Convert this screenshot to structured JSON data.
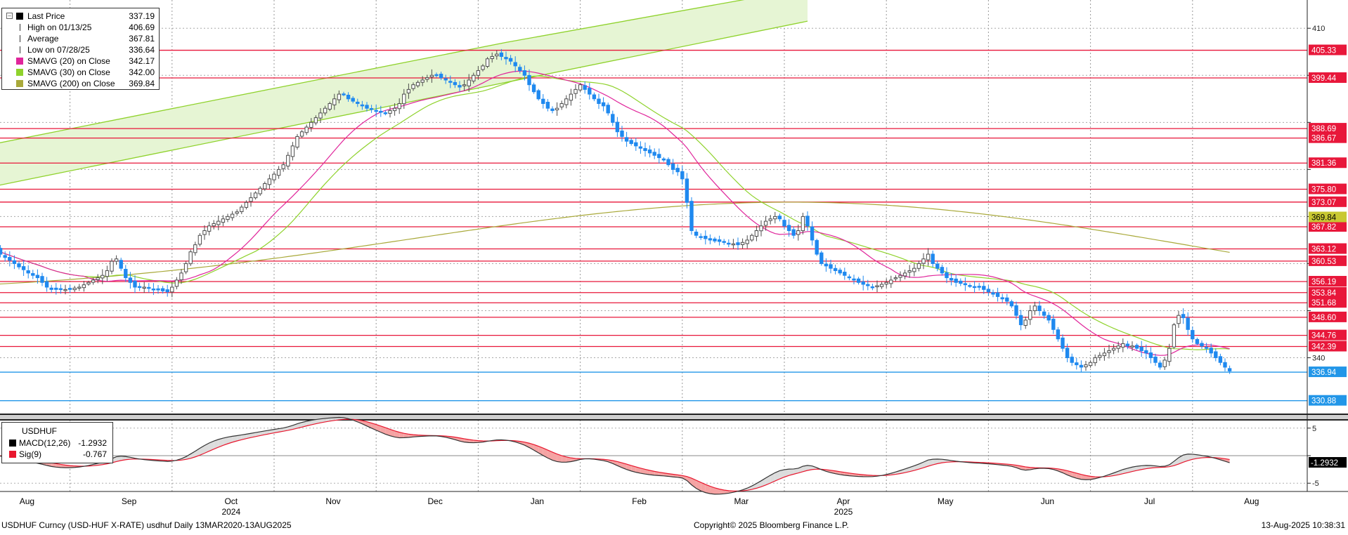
{
  "chart_data": [
    {
      "type": "candlestick",
      "symbol": "USDHUF",
      "ylim": [
        328,
        416
      ],
      "yticks": [
        340,
        350,
        360,
        370,
        380,
        390,
        400,
        410
      ],
      "ytick_labels": {
        "340": "340",
        "410": "410"
      },
      "months": [
        {
          "label": "Aug",
          "bar": 4
        },
        {
          "label": "Sep",
          "bar": 26
        },
        {
          "label": "Oct",
          "bar": 48
        },
        {
          "label": "Nov",
          "bar": 70
        },
        {
          "label": "Dec",
          "bar": 92
        },
        {
          "label": "Jan",
          "bar": 114
        },
        {
          "label": "Feb",
          "bar": 136
        },
        {
          "label": "Mar",
          "bar": 158
        },
        {
          "label": "Apr",
          "bar": 180
        },
        {
          "label": "May",
          "bar": 202
        },
        {
          "label": "Jun",
          "bar": 224
        },
        {
          "label": "Jul",
          "bar": 246
        },
        {
          "label": "Aug",
          "bar": 268
        }
      ],
      "month_dividers": [
        16,
        38,
        60,
        82,
        104,
        126,
        148,
        170,
        192,
        214,
        236,
        258
      ],
      "years": [
        {
          "label": "2024",
          "bar": 48
        },
        {
          "label": "2025",
          "bar": 180
        }
      ],
      "closes": [
        363.0,
        362.0,
        361.3,
        360.7,
        360.0,
        359.3,
        358.7,
        358.0,
        357.5,
        357.0,
        356.0,
        355.0,
        354.5,
        354.5,
        354.5,
        354.5,
        354.5,
        354.8,
        355.0,
        355.5,
        356.0,
        356.5,
        357.0,
        357.5,
        358.5,
        360.5,
        361.0,
        359.0,
        357.0,
        356.0,
        355.0,
        355.0,
        355.0,
        354.8,
        354.6,
        354.4,
        354.2,
        354.0,
        355.0,
        356.5,
        358.0,
        360.0,
        362.5,
        364.0,
        366.0,
        367.0,
        368.0,
        368.5,
        369.0,
        369.5,
        370.0,
        370.5,
        371.0,
        372.0,
        373.0,
        374.0,
        375.0,
        376.0,
        377.0,
        378.0,
        379.0,
        380.0,
        381.0,
        383.0,
        385.0,
        387.0,
        388.0,
        389.0,
        390.0,
        391.0,
        392.0,
        393.0,
        394.0,
        395.0,
        396.0,
        396.0,
        395.0,
        394.5,
        394.0,
        393.5,
        393.0,
        392.8,
        392.5,
        392.3,
        392.0,
        392.5,
        393.0,
        394.0,
        396.0,
        397.0,
        398.0,
        398.5,
        399.0,
        399.5,
        400.0,
        400.0,
        399.5,
        399.0,
        398.5,
        398.0,
        397.5,
        398.0,
        399.0,
        400.0,
        401.0,
        402.0,
        403.5,
        404.0,
        404.5,
        404.0,
        403.5,
        403.0,
        402.0,
        401.0,
        400.0,
        398.0,
        396.5,
        395.0,
        394.0,
        393.0,
        392.5,
        393.0,
        394.0,
        395.0,
        396.0,
        397.0,
        398.0,
        397.0,
        396.0,
        395.0,
        394.0,
        393.5,
        392.0,
        390.0,
        388.0,
        387.0,
        386.0,
        385.5,
        385.0,
        384.5,
        384.0,
        383.5,
        383.0,
        382.5,
        382.0,
        381.0,
        380.0,
        379.5,
        378.0,
        373.0,
        367.0,
        366.0,
        365.7,
        365.3,
        365.0,
        364.8,
        364.7,
        364.5,
        364.3,
        364.2,
        364.0,
        364.5,
        365.0,
        366.0,
        367.0,
        368.0,
        369.0,
        369.5,
        370.0,
        369.5,
        368.0,
        367.0,
        366.0,
        367.0,
        370.0,
        368.0,
        365.0,
        362.0,
        360.0,
        359.5,
        359.0,
        358.5,
        358.0,
        357.5,
        357.0,
        356.5,
        356.0,
        355.6,
        355.3,
        355.0,
        355.3,
        355.6,
        356.0,
        356.5,
        357.0,
        357.5,
        358.0,
        358.5,
        359.0,
        360.0,
        361.0,
        362.0,
        360.0,
        359.0,
        358.0,
        357.0,
        356.5,
        356.0,
        355.8,
        355.5,
        355.3,
        355.0,
        355.0,
        354.5,
        354.0,
        353.5,
        353.0,
        352.5,
        352.0,
        351.0,
        349.0,
        347.0,
        348.0,
        350.0,
        351.0,
        350.0,
        349.0,
        348.0,
        346.0,
        344.0,
        342.0,
        340.0,
        339.0,
        338.5,
        338.0,
        338.5,
        339.0,
        340.0,
        340.5,
        341.0,
        341.5,
        342.0,
        342.5,
        343.0,
        342.5,
        342.5,
        342.0,
        341.5,
        341.0,
        340.0,
        339.0,
        338.0,
        339.5,
        342.0,
        347.0,
        349.0,
        348.5,
        346.0,
        344.0,
        343.0,
        342.5,
        342.0,
        341.0,
        340.0,
        339.0,
        338.0,
        337.19
      ],
      "last_price_tag": "336.94",
      "level_tags": [
        "405.33",
        "399.44",
        "388.69",
        "386.67",
        "381.36",
        "375.80",
        "373.07",
        "367.82",
        "363.12",
        "360.53",
        "356.19",
        "353.84",
        "351.68",
        "348.60",
        "344.76",
        "342.39"
      ],
      "sma200_tag": "369.84",
      "bottom_tag": "330.88",
      "channel": {
        "upper": [
          [
            0,
            385.5
          ],
          [
            110,
            407.0
          ],
          [
            175,
            418.5
          ]
        ],
        "lower": [
          [
            0,
            376.5
          ],
          [
            175,
            411.5
          ]
        ]
      },
      "ma_colors": {
        "sma20": "#e0259b",
        "sma30": "#8fd22c",
        "sma200": "#a9a93a"
      },
      "colors": {
        "up": "#4d4d4d",
        "down": "#1f89ef",
        "levels": "#e8173a",
        "last": "#2296e8",
        "ma_tag": "#c8c832"
      }
    },
    {
      "type": "line",
      "symbol": "USDHUF",
      "ylim": [
        -6.5,
        6.5
      ],
      "yticks": [
        -5,
        0,
        5
      ],
      "ytick_labels": {
        "-5": "-5",
        "5": "5"
      },
      "macd_tag": "-1.2932",
      "series": [
        {
          "name": "MACD(12,26)",
          "color": "#333333"
        },
        {
          "name": "Sig(9)",
          "color": "#e8172e"
        }
      ]
    }
  ],
  "legend": [
    {
      "label": "Last Price",
      "value": "337.19",
      "swatch": "#000000",
      "kind": "box"
    },
    {
      "label": "High on 01/13/25",
      "value": "406.69",
      "swatch": "#333333",
      "kind": "high"
    },
    {
      "label": "Average",
      "value": "367.81",
      "swatch": "#333333",
      "kind": "avg"
    },
    {
      "label": "Low on 07/28/25",
      "value": "336.64",
      "swatch": "#333333",
      "kind": "low"
    },
    {
      "label": "SMAVG (20)  on Close",
      "value": "342.17",
      "swatch": "#e0259b",
      "kind": "box"
    },
    {
      "label": "SMAVG (30)  on Close",
      "value": "342.00",
      "swatch": "#8fd22c",
      "kind": "box"
    },
    {
      "label": "SMAVG (200)  on Close",
      "value": "369.84",
      "swatch": "#a9a93a",
      "kind": "box"
    }
  ],
  "macd_legend": {
    "title": "USDHUF",
    "rows": [
      {
        "label": "MACD(12,26)",
        "value": "-1.2932",
        "swatch": "#000000"
      },
      {
        "label": "Sig(9)",
        "value": "-0.767",
        "swatch": "#e8172e"
      }
    ]
  },
  "footer": {
    "left": "USDHUF Curncy (USD-HUF X-RATE) usdhuf  Daily 13MAR2020-13AUG2025",
    "center": "Copyright© 2025 Bloomberg Finance L.P.",
    "right": "13-Aug-2025 10:38:31"
  }
}
